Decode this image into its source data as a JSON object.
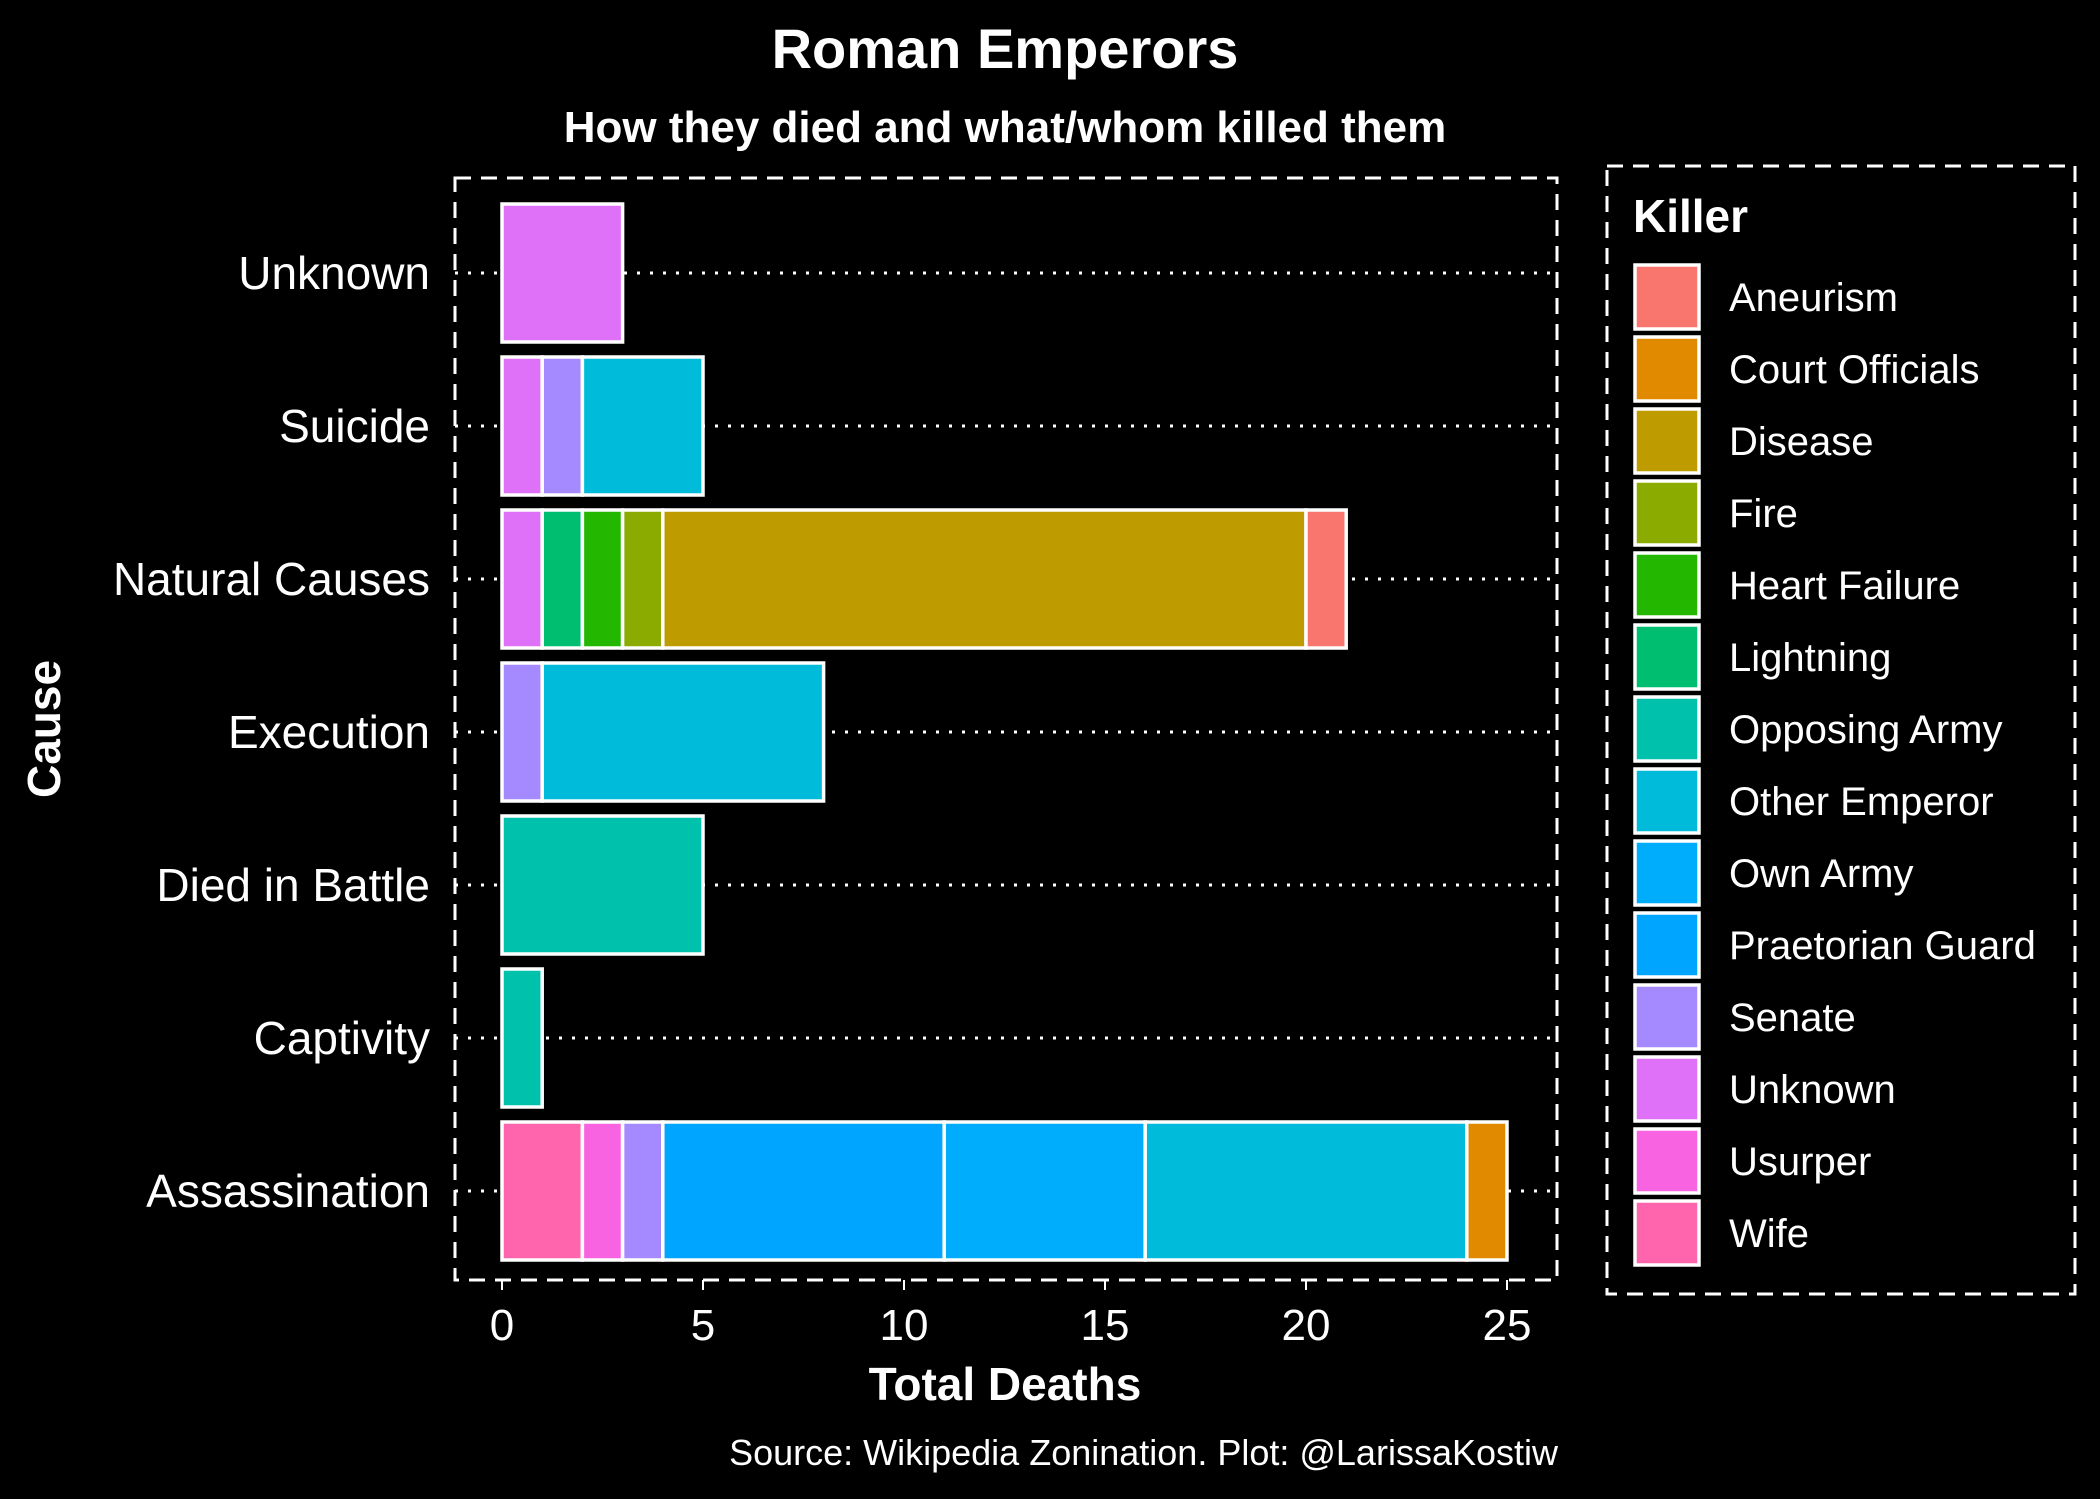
{
  "chart_data": {
    "type": "bar",
    "orientation": "horizontal",
    "stacked": true,
    "title": "Roman Emperors",
    "subtitle": "How they died and what/whom killed them",
    "xlabel": "Total Deaths",
    "ylabel": "Cause",
    "caption": "Source: Wikipedia Zonination. Plot: @LarissaKostiw",
    "xlim": [
      0,
      26
    ],
    "xticks": [
      "0",
      "5",
      "10",
      "15",
      "20",
      "25"
    ],
    "legend_title": "Killer",
    "legend_position": "right",
    "grid": "dotted horizontal",
    "killers": [
      {
        "name": "Aneurism",
        "color": "#F8766D"
      },
      {
        "name": "Court Officials",
        "color": "#E18A00"
      },
      {
        "name": "Disease",
        "color": "#BE9C00"
      },
      {
        "name": "Fire",
        "color": "#8CAB00"
      },
      {
        "name": "Heart Failure",
        "color": "#24B700"
      },
      {
        "name": "Lightning",
        "color": "#00BE70"
      },
      {
        "name": "Opposing Army",
        "color": "#00C1AB"
      },
      {
        "name": "Other Emperor",
        "color": "#00BBDA"
      },
      {
        "name": "Own Army",
        "color": "#00ACFC"
      },
      {
        "name": "Praetorian Guard",
        "color": "#00A5FF"
      },
      {
        "name": "Senate",
        "color": "#A58AFF"
      },
      {
        "name": "Unknown",
        "color": "#DF70F8"
      },
      {
        "name": "Usurper",
        "color": "#F763E0"
      },
      {
        "name": "Wife",
        "color": "#FF65AC"
      }
    ],
    "categories": [
      "Unknown",
      "Suicide",
      "Natural Causes",
      "Execution",
      "Died in Battle",
      "Captivity",
      "Assassination"
    ],
    "bars": [
      {
        "cause": "Unknown",
        "segments": [
          {
            "killer": "Unknown",
            "value": 3
          }
        ]
      },
      {
        "cause": "Suicide",
        "segments": [
          {
            "killer": "Unknown",
            "value": 1
          },
          {
            "killer": "Senate",
            "value": 1
          },
          {
            "killer": "Other Emperor",
            "value": 3
          }
        ]
      },
      {
        "cause": "Natural Causes",
        "segments": [
          {
            "killer": "Unknown",
            "value": 1
          },
          {
            "killer": "Lightning",
            "value": 1
          },
          {
            "killer": "Heart Failure",
            "value": 1
          },
          {
            "killer": "Fire",
            "value": 1
          },
          {
            "killer": "Disease",
            "value": 16
          },
          {
            "killer": "Aneurism",
            "value": 1
          }
        ]
      },
      {
        "cause": "Execution",
        "segments": [
          {
            "killer": "Senate",
            "value": 1
          },
          {
            "killer": "Other Emperor",
            "value": 7
          }
        ]
      },
      {
        "cause": "Died in Battle",
        "segments": [
          {
            "killer": "Opposing Army",
            "value": 5
          }
        ]
      },
      {
        "cause": "Captivity",
        "segments": [
          {
            "killer": "Opposing Army",
            "value": 1
          }
        ]
      },
      {
        "cause": "Assassination",
        "segments": [
          {
            "killer": "Wife",
            "value": 2
          },
          {
            "killer": "Usurper",
            "value": 1
          },
          {
            "killer": "Senate",
            "value": 1
          },
          {
            "killer": "Praetorian Guard",
            "value": 7
          },
          {
            "killer": "Own Army",
            "value": 5
          },
          {
            "killer": "Other Emperor",
            "value": 8
          },
          {
            "killer": "Court Officials",
            "value": 1
          }
        ]
      }
    ]
  }
}
